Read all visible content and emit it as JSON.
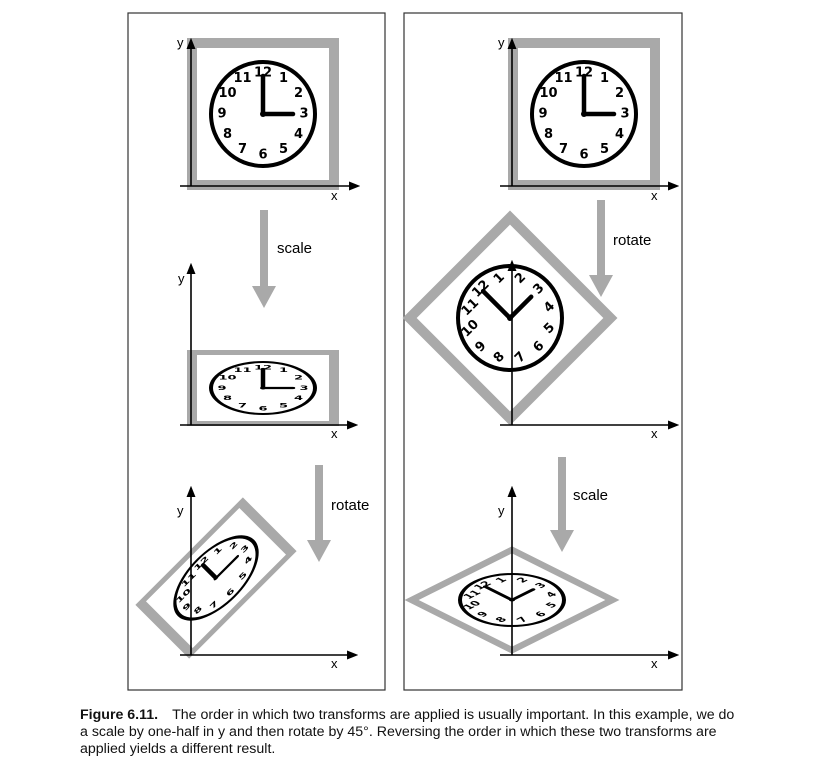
{
  "diagram": {
    "axis_x": "x",
    "axis_y": "y",
    "left_panel": {
      "step1": "scale",
      "step2": "rotate"
    },
    "right_panel": {
      "step1": "rotate",
      "step2": "scale"
    },
    "clock_numbers": [
      "12",
      "1",
      "2",
      "3",
      "4",
      "5",
      "6",
      "7",
      "8",
      "9",
      "10",
      "11"
    ],
    "colors": {
      "frame": "#a9a9a9",
      "ink": "#000000",
      "panel_border": "#333333"
    }
  },
  "caption": {
    "label": "Figure 6.11.",
    "text": "The order in which two transforms are applied is usually important. In this example, we do a scale by one-half in y and then rotate by 45°. Reversing the order in which these two transforms are applied yields a different result."
  }
}
